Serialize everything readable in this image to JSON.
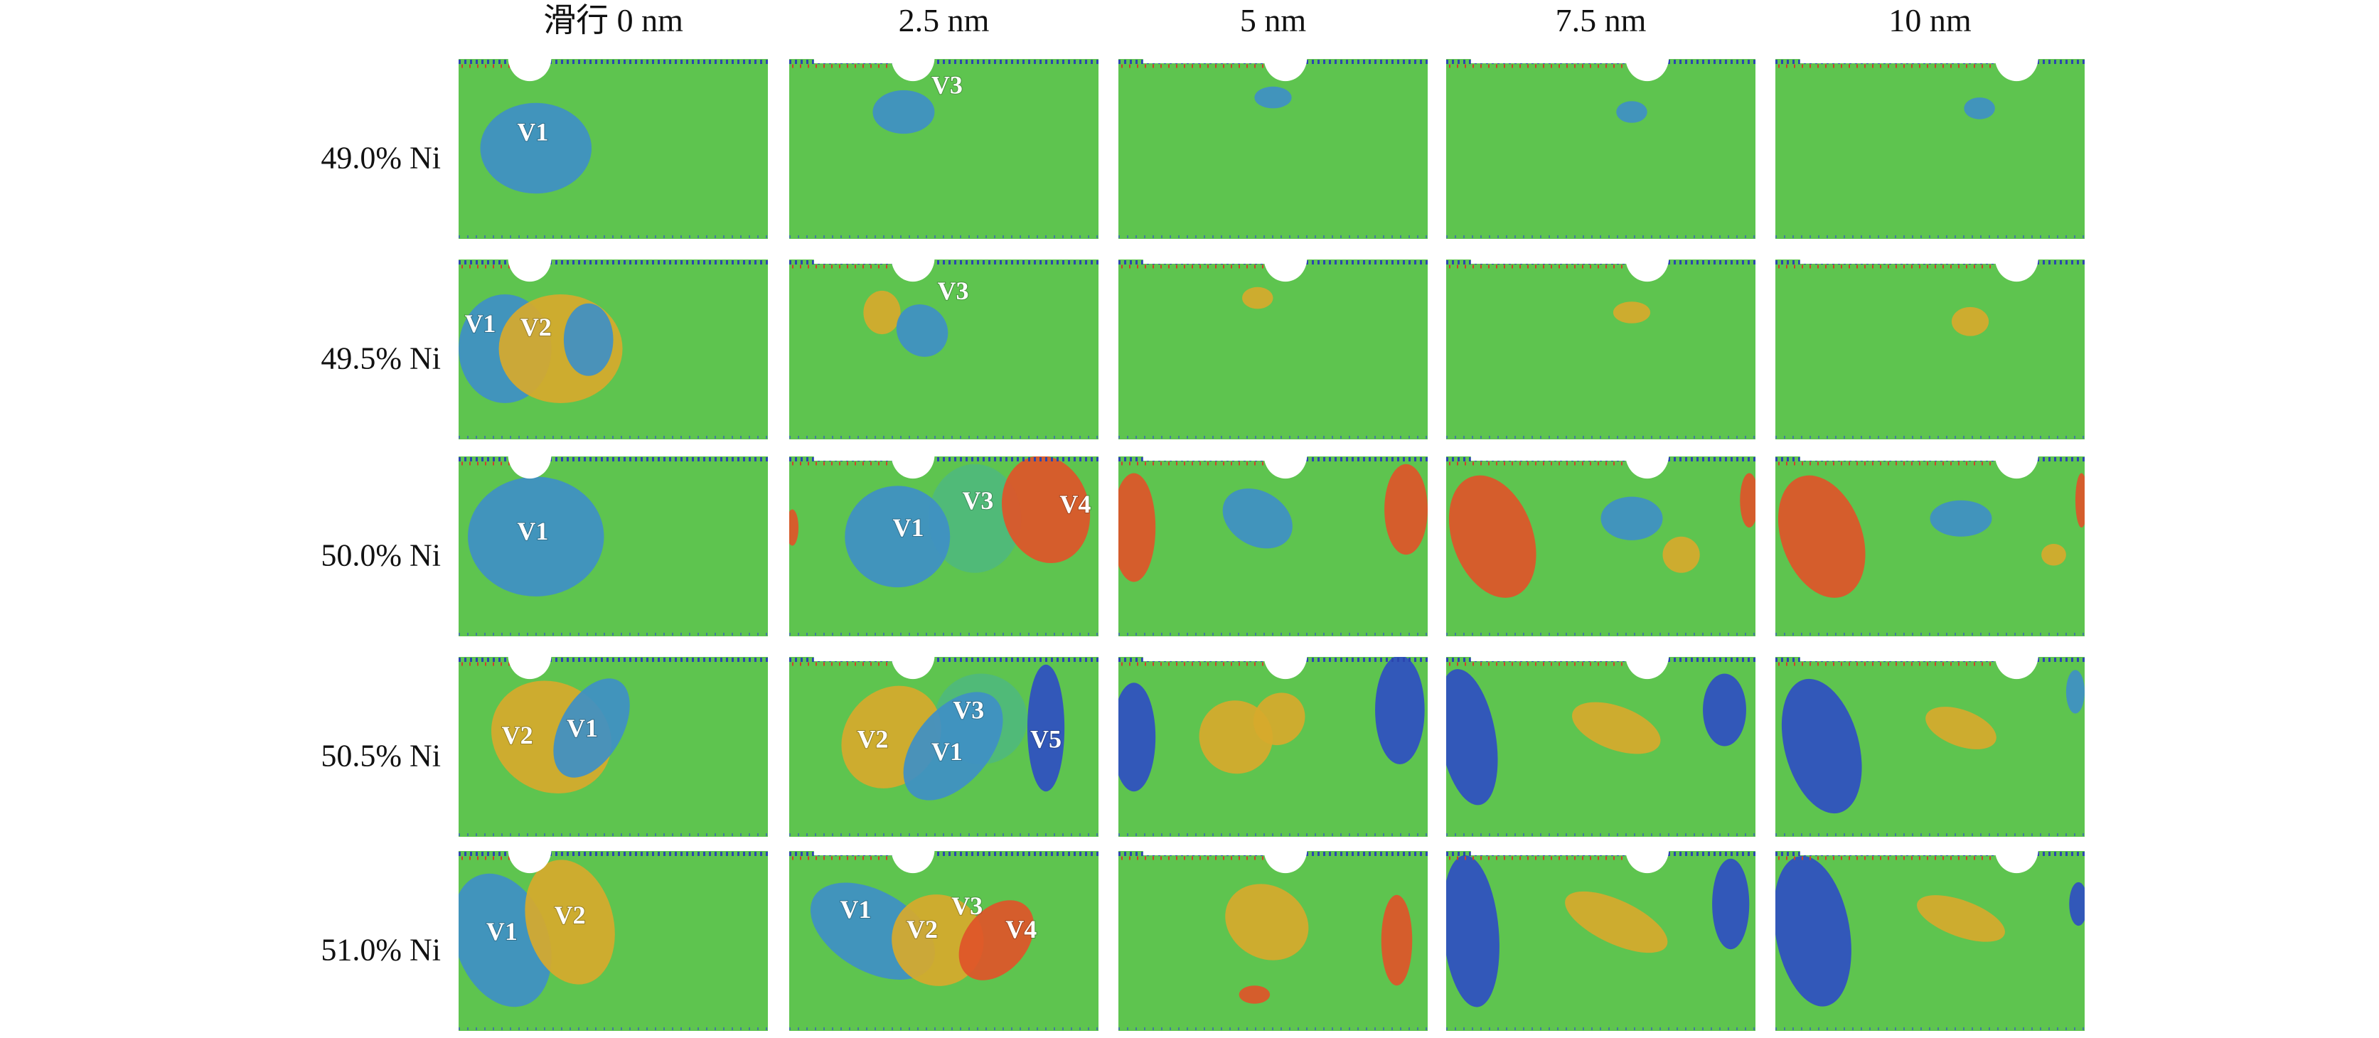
{
  "column_headers": [
    "滑行 0 nm",
    "2.5 nm",
    "5 nm",
    "7.5 nm",
    "10 nm"
  ],
  "row_labels": [
    "49.0% Ni",
    "49.5% Ni",
    "50.0% Ni",
    "50.5% Ni",
    "51.0% Ni"
  ],
  "panel_labels": [
    [
      [
        "V1"
      ],
      [
        "V3"
      ],
      [],
      [],
      []
    ],
    [
      [
        "V1",
        "V2"
      ],
      [
        "V3"
      ],
      [],
      [],
      []
    ],
    [
      [
        "V1"
      ],
      [
        "V1",
        "V3",
        "V4"
      ],
      [],
      [],
      []
    ],
    [
      [
        "V2",
        "V1"
      ],
      [
        "V3",
        "V2",
        "V1",
        "V5"
      ],
      [],
      [],
      []
    ],
    [
      [
        "V1",
        "V2"
      ],
      [
        "V1",
        "V2",
        "V3",
        "V4"
      ],
      [],
      [],
      []
    ]
  ]
}
